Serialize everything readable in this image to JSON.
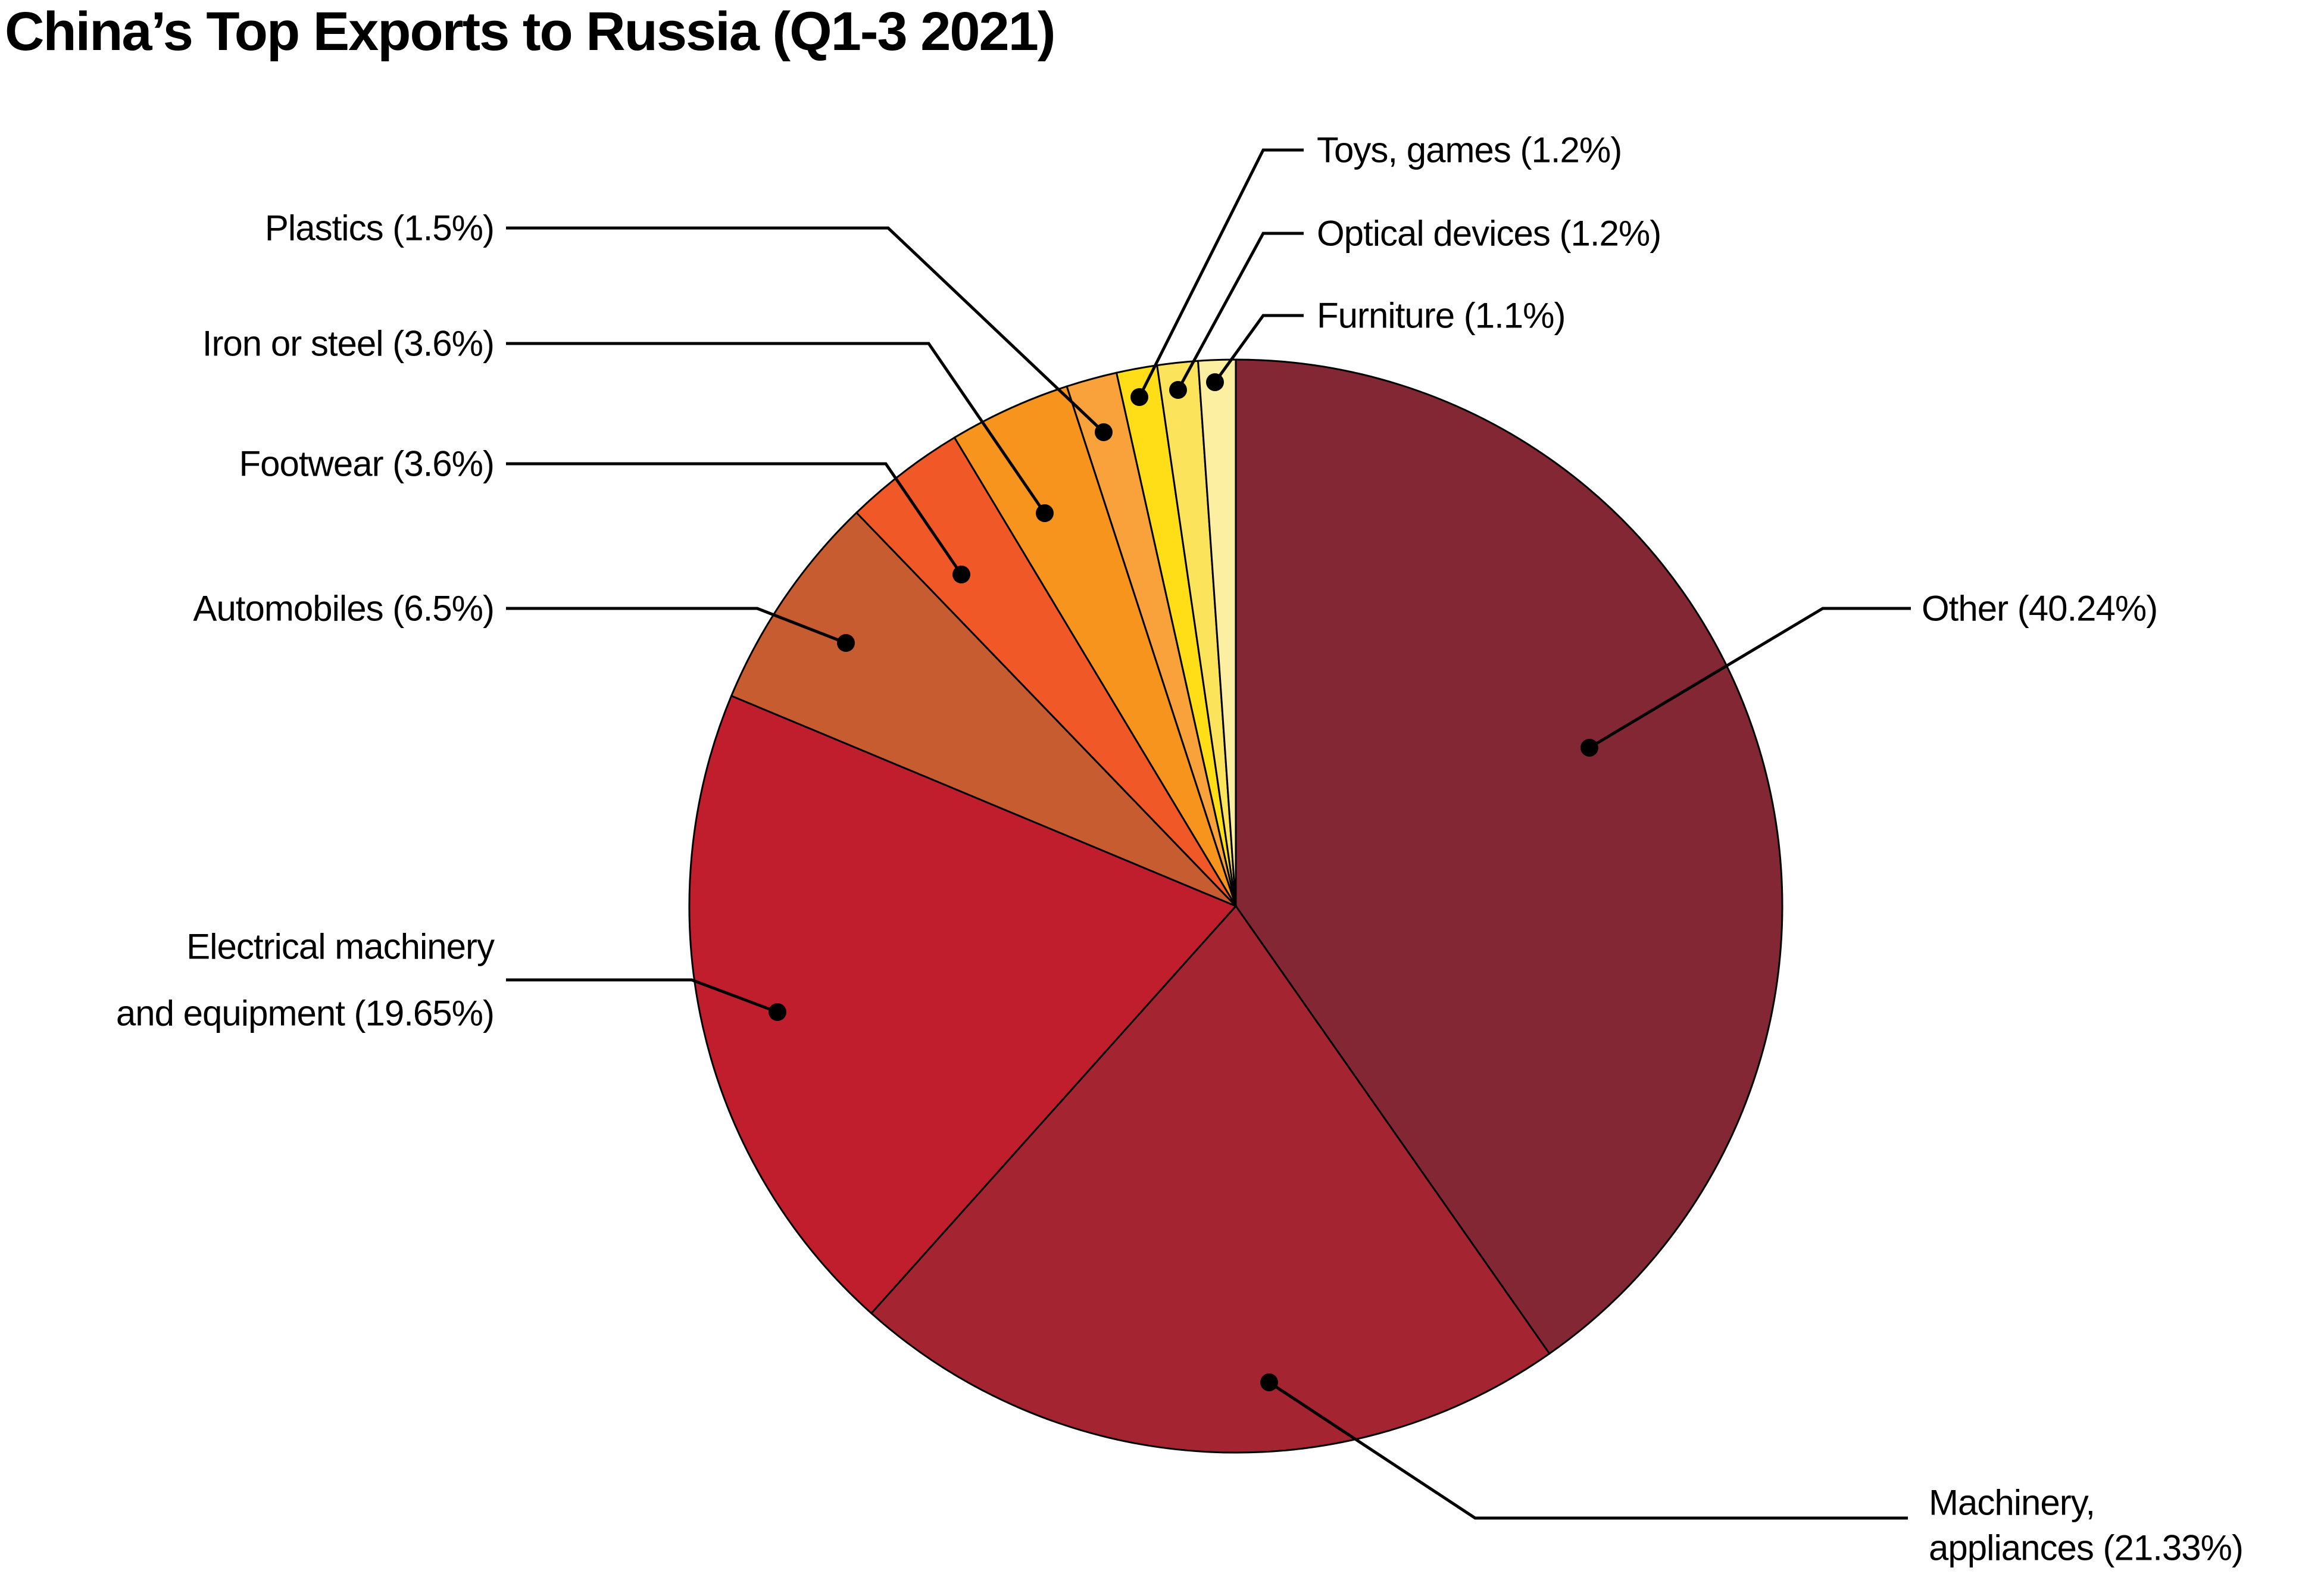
{
  "title": "China’s Top Exports to Russia (Q1-3 2021)",
  "chart_data": {
    "type": "pie",
    "title": "China’s Top Exports to Russia (Q1-3 2021)",
    "unit": "percent",
    "start_angle": "12 o'clock",
    "direction": "clockwise",
    "background": "#FFFFFF",
    "outline_color": "#000000",
    "leader_line_color": "#000000",
    "slices": [
      {
        "name": "Other",
        "value": 40.24,
        "color": "#832735",
        "label_lines": [
          "Other (40.24%)"
        ]
      },
      {
        "name": "Machinery, appliances",
        "value": 21.33,
        "color": "#A42431",
        "label_lines": [
          "Machinery,",
          "appliances (21.33%)"
        ]
      },
      {
        "name": "Electrical machinery and equipment",
        "value": 19.65,
        "color": "#C11E2D",
        "label_lines": [
          "Electrical machinery",
          "and equipment (19.65%)"
        ]
      },
      {
        "name": "Automobiles",
        "value": 6.5,
        "color": "#C65C2F",
        "label_lines": [
          "Automobiles (6.5%)"
        ]
      },
      {
        "name": "Footwear",
        "value": 3.6,
        "color": "#F15827",
        "label_lines": [
          "Footwear (3.6%)"
        ]
      },
      {
        "name": "Iron or steel",
        "value": 3.6,
        "color": "#F7941E",
        "label_lines": [
          "Iron or steel (3.6%)"
        ]
      },
      {
        "name": "Plastics",
        "value": 1.5,
        "color": "#F9A23C",
        "label_lines": [
          "Plastics (1.5%)"
        ]
      },
      {
        "name": "Toys, games",
        "value": 1.2,
        "color": "#FFDE17",
        "label_lines": [
          "Toys, games (1.2%)"
        ]
      },
      {
        "name": "Optical devices",
        "value": 1.2,
        "color": "#FCE35C",
        "label_lines": [
          "Optical devices (1.2%)"
        ]
      },
      {
        "name": "Furniture",
        "value": 1.1,
        "color": "#FCEFA1",
        "label_lines": [
          "Furniture (1.1%)"
        ]
      }
    ]
  }
}
